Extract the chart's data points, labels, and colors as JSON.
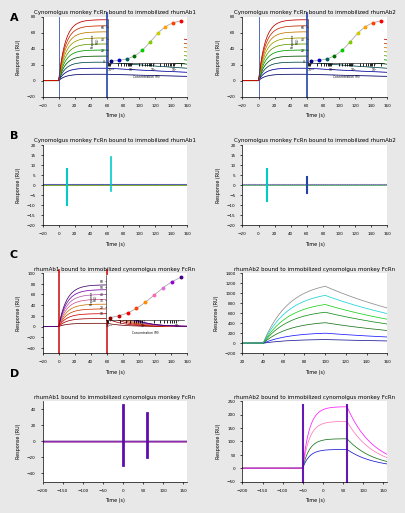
{
  "figure_bg": "#e8e8e8",
  "panel_bg": "#ffffff",
  "row_labels": [
    "A",
    "B",
    "C",
    "D"
  ],
  "panel_titles": {
    "A1": "Cynomolgus monkey FcRn bound to immobilized rhumAb1",
    "A2": "Cynomolgus monkey FcRn bound to immobilized rhumAb2",
    "B1": "Cynomolgus monkey FcRn bound to immobilized rhumAb1",
    "B2": "Cynomolgus monkey FcRn bound to immobilized rhumAb2",
    "C1": "rhumAb1 bound to immobilized cynomolgus monkey FcRn",
    "C2": "rhumAb2 bound to immobilized cynomolgus monkey FcRn",
    "D1": "rhumAb1 bound to immobilized cynomolgus monkey FcRn",
    "D2": "rhumAb2 bound to immobilized cynomolgus monkey FcRn"
  },
  "xlabel": "Time (s)",
  "colors_A": [
    "#00008B",
    "#0000CD",
    "#006060",
    "#007000",
    "#00CC00",
    "#80CC00",
    "#CCCC00",
    "#FFA000",
    "#FF4000",
    "#FF0000"
  ],
  "colors_B_cyan": "#00CCCC",
  "colors_B_lines": [
    "#FF0000",
    "#0000CD",
    "#00CC00",
    "#FFA000"
  ],
  "colors_C1": [
    "#8B0000",
    "#CC0000",
    "#FF0000",
    "#FF4500",
    "#FF8C00",
    "#FF69B4",
    "#DA70D6",
    "#9400D3",
    "#4B0082"
  ],
  "colors_C2": [
    "#00008B",
    "#0000FF",
    "#006400",
    "#008000",
    "#00CC00",
    "#00CED1",
    "#808080"
  ],
  "colors_D1": [
    "#800080",
    "#8B008B",
    "#9400D3",
    "#4B0082"
  ],
  "colors_D2_lines": [
    "#0000CD",
    "#006400",
    "#FF69B4",
    "#FF00FF"
  ]
}
